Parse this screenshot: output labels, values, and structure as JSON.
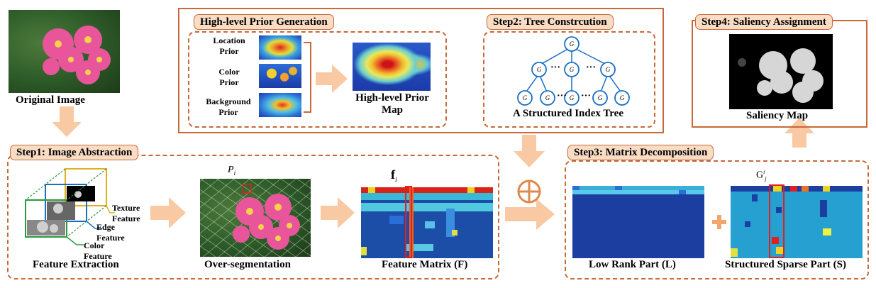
{
  "original": {
    "label": "Original Image"
  },
  "prior": {
    "title": "High-level Prior Generation",
    "location": "Location\nPrior",
    "color": "Color\nPrior",
    "background": "Background\nPrior",
    "map_label": "High-level Prior\nMap"
  },
  "step2": {
    "title": "Step2: Tree Constrcution",
    "caption": "A Structured Index Tree",
    "root": "G₁ʲ",
    "level1": [
      "G₁ʲ",
      "G₂ʲ",
      "Gₙʲ"
    ],
    "dots": "···"
  },
  "step4": {
    "title": "Step4: Saliency Assignment",
    "caption": "Saliency Map"
  },
  "step1": {
    "title": "Step1: Image Abstraction",
    "texture": "Texture\nFeature",
    "edge": "Edge\nFeature",
    "color": "Color\nFeature",
    "feature_extraction": "Feature Extraction",
    "oversegmentation": "Over-segmentation",
    "pi": "P",
    "pi_sub": "i",
    "fi": "f",
    "fi_sub": "i",
    "feature_matrix": "Feature Matrix (F)"
  },
  "step3": {
    "title": "Step3: Matrix Decomposition",
    "low_rank": "Low Rank Part (L)",
    "sparse": "Structured Sparse Part (S)",
    "gj": "G",
    "gj_sup": "i",
    "gj_sub": "j"
  },
  "colors": {
    "frame": "#c8693a",
    "arrow": "#f8c9a2",
    "tab_bg": "#f9dcc4",
    "node": "#1a6fc4"
  }
}
